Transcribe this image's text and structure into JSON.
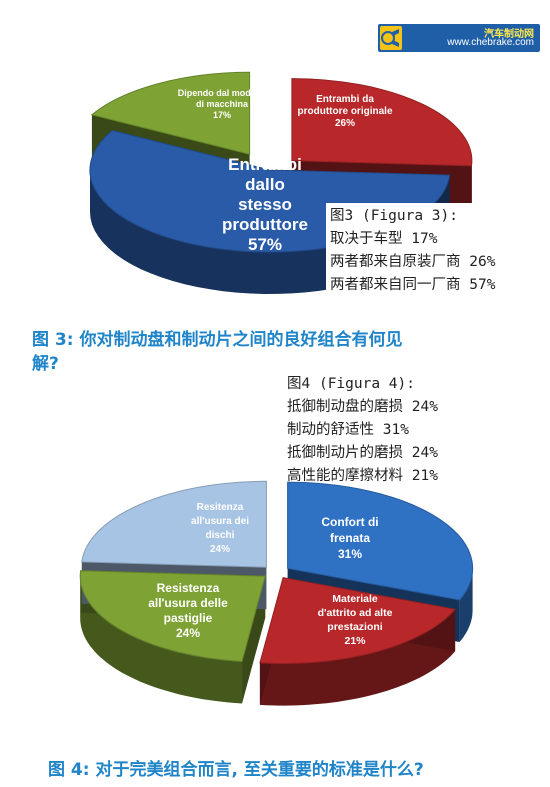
{
  "logo": {
    "name": "汽车制动网",
    "url": "www.chebrake.com"
  },
  "chart_data": [
    {
      "type": "pie",
      "title": "",
      "slices": [
        {
          "label": [
            "Entrambi da",
            "produttore originale",
            "26%"
          ],
          "value": 26,
          "color": "#b8282a"
        },
        {
          "label": [
            "Entrambi",
            "dallo",
            "stesso",
            "produttore",
            "57%"
          ],
          "value": 57,
          "color": "#2a5ba8"
        },
        {
          "label": [
            "Dipendo dal modello",
            "di macchina",
            "17%"
          ],
          "value": 17,
          "color": "#7ea234"
        }
      ],
      "legend_lines": [
        "图3 (Figura 3):",
        "取决于车型 17%",
        "两者都来自原装厂商 26%",
        "两者都来自同一厂商 57%"
      ],
      "caption": [
        "图 3: 你对制动盘和制动片之间的良好组合有何见",
        "解?"
      ]
    },
    {
      "type": "pie",
      "title": "",
      "slices": [
        {
          "label": [
            "Confort di",
            "frenata",
            "31%"
          ],
          "value": 31,
          "color": "#2f72c4"
        },
        {
          "label": [
            "Materiale",
            "d'attrito ad alte",
            "prestazioni",
            "21%"
          ],
          "value": 21,
          "color": "#b8282a"
        },
        {
          "label": [
            "Resistenza",
            "all'usura delle",
            "pastiglie",
            "24%"
          ],
          "value": 24,
          "color": "#7ea234"
        },
        {
          "label": [
            "Resitenza",
            "all'usura dei",
            "dischi",
            "24%"
          ],
          "value": 24,
          "color": "#a8c4e4"
        }
      ],
      "legend_lines": [
        "图4 (Figura 4):",
        "抵御制动盘的磨损 24%",
        "制动的舒适性 31%",
        "抵御制动片的磨损 24%",
        "高性能的摩擦材料 21%"
      ],
      "caption": [
        "图 4: 对于完美组合而言, 至关重要的标准是什么?"
      ]
    }
  ]
}
